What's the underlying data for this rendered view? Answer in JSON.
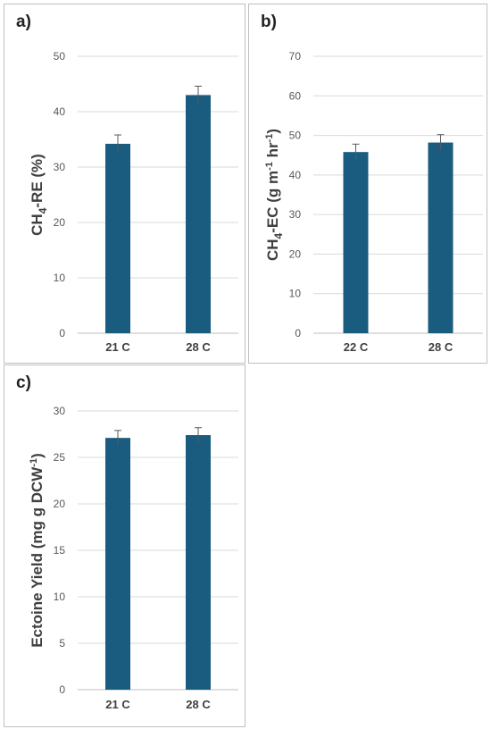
{
  "colors": {
    "bar": "#1a5c7f",
    "grid": "#d9d9d9",
    "axis": "#bfbfbf",
    "error": "#595959"
  },
  "chart_data": [
    {
      "panel": "a)",
      "type": "bar",
      "categories": [
        "21 C",
        "28 C"
      ],
      "values": [
        34.2,
        43.0
      ],
      "errors": [
        1.6,
        1.6
      ],
      "ylabel": {
        "main": "CH",
        "sub": "4",
        "rest": "-RE (%)"
      },
      "ylim": [
        0,
        50
      ],
      "yticks": [
        0,
        10,
        20,
        30,
        40,
        50
      ],
      "grid": true
    },
    {
      "panel": "b)",
      "type": "bar",
      "categories": [
        "22 C",
        "28 C"
      ],
      "values": [
        45.8,
        48.2
      ],
      "errors": [
        2.0,
        2.0
      ],
      "ylabel": {
        "main": "CH",
        "sub": "4",
        "rest": "-EC (g m",
        "sup1": "-1",
        "rest2": " hr",
        "sup2": "-1",
        "rest3": ")"
      },
      "ylim": [
        0,
        70
      ],
      "yticks": [
        0,
        10,
        20,
        30,
        40,
        50,
        60,
        70
      ],
      "grid": true
    },
    {
      "panel": "c)",
      "type": "bar",
      "categories": [
        "21 C",
        "28 C"
      ],
      "values": [
        27.1,
        27.4
      ],
      "errors": [
        0.8,
        0.8
      ],
      "ylabel": {
        "main": "Ectoine Yield (mg g DCW",
        "sup1": "-1",
        "rest": ")"
      },
      "ylim": [
        0,
        30
      ],
      "yticks": [
        0,
        5,
        10,
        15,
        20,
        25,
        30
      ],
      "grid": true
    }
  ]
}
